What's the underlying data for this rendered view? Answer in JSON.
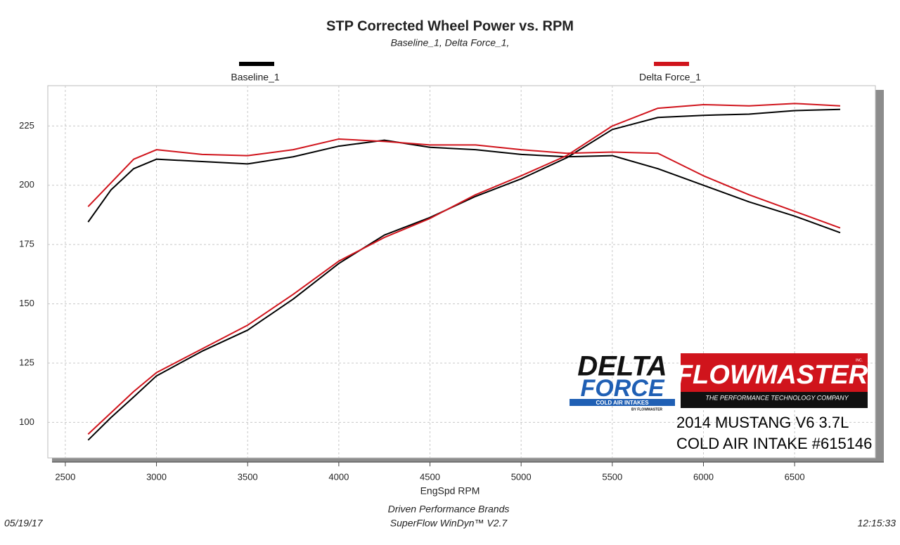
{
  "chart_data": {
    "type": "line",
    "title": "STP Corrected Wheel Power vs. RPM",
    "subtitle": "Baseline_1, Delta Force_1,",
    "x_label": "EngSpd  RPM",
    "x": [
      2625,
      2750,
      2875,
      3000,
      3250,
      3500,
      3750,
      4000,
      4250,
      4500,
      4750,
      5000,
      5250,
      5500,
      5750,
      6000,
      6250,
      6500,
      6750
    ],
    "series": [
      {
        "name": "Baseline_1",
        "color": "#000000",
        "lines": [
          [
            92.5,
            102,
            110.7,
            119.6,
            130,
            138.9,
            152,
            167,
            179,
            186.4,
            195.3,
            202.7,
            211.6,
            223.5,
            228.6,
            229.5,
            230,
            231.5,
            232
          ],
          [
            184.5,
            198,
            207,
            211,
            210,
            209,
            212,
            216.5,
            219,
            216,
            215,
            213,
            212,
            212.5,
            207,
            200,
            193,
            187,
            180
          ]
        ]
      },
      {
        "name": "Delta Force_1",
        "color": "#d0141c",
        "lines": [
          [
            95,
            104,
            113,
            121,
            131,
            141,
            154,
            168,
            178,
            186,
            196,
            204,
            212.5,
            225,
            232.5,
            234,
            233.5,
            234.5,
            233.5
          ],
          [
            191,
            201,
            211,
            215,
            213,
            212.5,
            215,
            219.5,
            218.5,
            217,
            217,
            215,
            213.5,
            214,
            213.5,
            204,
            196,
            189,
            182
          ]
        ]
      }
    ],
    "xlim": [
      2404,
      6943
    ],
    "ylim": [
      85,
      242
    ],
    "xticks": [
      2500,
      3000,
      3500,
      4000,
      4500,
      5000,
      5500,
      6000,
      6500
    ],
    "yticks": [
      100,
      125,
      150,
      175,
      200,
      225
    ],
    "grid": true,
    "logos": {
      "delta": [
        "DELTA",
        "FORCE",
        "COLD AIR INTAKES",
        "BY FLOWMASTER"
      ],
      "flowmaster": [
        "FLOWMASTER",
        "INC.",
        "THE PERFORMANCE TECHNOLOGY COMPANY"
      ]
    },
    "annotations": [
      "2014 MUSTANG V6 3.7L",
      "COLD AIR INTAKE #615146"
    ],
    "footer": [
      "Driven Performance Brands",
      "SuperFlow WinDyn™  V2.7"
    ],
    "date": "05/19/17",
    "time": "12:15:33"
  }
}
